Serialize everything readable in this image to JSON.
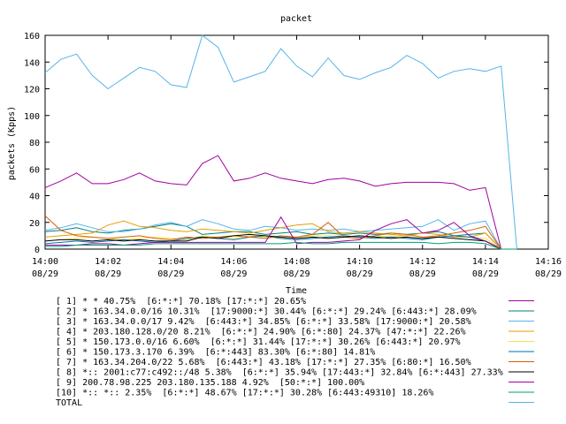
{
  "chart_data": {
    "type": "line",
    "title": "packet",
    "xlabel": "Time",
    "ylabel": "packets (Kpps)",
    "ylim": [
      0,
      160
    ],
    "xlim": [
      0,
      16
    ],
    "grid": false,
    "legend_placement": "bottom",
    "y_ticks": [
      "0",
      "20",
      "40",
      "60",
      "80",
      "100",
      "120",
      "140",
      "160"
    ],
    "x_ticks": [
      {
        "time": "14:00",
        "date": "08/29"
      },
      {
        "time": "14:02",
        "date": "08/29"
      },
      {
        "time": "14:04",
        "date": "08/29"
      },
      {
        "time": "14:06",
        "date": "08/29"
      },
      {
        "time": "14:08",
        "date": "08/29"
      },
      {
        "time": "14:10",
        "date": "08/29"
      },
      {
        "time": "14:12",
        "date": "08/29"
      },
      {
        "time": "14:14",
        "date": "08/29"
      },
      {
        "time": "14:16",
        "date": "08/29"
      }
    ],
    "x": [
      0,
      0.5,
      1,
      1.5,
      2,
      2.5,
      3,
      3.5,
      4,
      4.5,
      5,
      5.5,
      6,
      6.5,
      7,
      7.5,
      8,
      8.5,
      9,
      9.5,
      10,
      10.5,
      11,
      11.5,
      12,
      12.5,
      13,
      13.5,
      14,
      14.5,
      15
    ],
    "series": [
      {
        "name": "[ 1] * * 40.75%  [6:*:*] 70.18% [17:*:*] 20.65%",
        "color": "#a000a0",
        "values": [
          46,
          51,
          57,
          49,
          49,
          52,
          57,
          51,
          49,
          48,
          64,
          70,
          51,
          53,
          57,
          53,
          51,
          49,
          52,
          53,
          51,
          47,
          49,
          50,
          50,
          50,
          49,
          44,
          46,
          0,
          0
        ]
      },
      {
        "name": "[ 2] * 163.34.0.0/16 10.31%  [17:9000:*] 30.44% [6:*:*] 29.24% [6:443:*] 28.09%",
        "color": "#008080",
        "values": [
          13,
          14,
          16,
          13,
          12,
          14,
          15,
          17,
          19,
          17,
          11,
          12,
          13,
          13,
          11,
          12,
          13,
          11,
          12,
          11,
          12,
          11,
          12,
          11,
          12,
          13,
          10,
          11,
          12,
          0,
          0
        ]
      },
      {
        "name": "[ 3] * 163.34.0.0/17 9.42%  [6:443:*] 34.85% [6:*:*] 33.58% [17:9000:*] 20.58%",
        "color": "#56b4e9",
        "values": [
          14,
          16,
          19,
          16,
          13,
          13,
          15,
          18,
          20,
          17,
          22,
          19,
          15,
          14,
          17,
          16,
          14,
          15,
          14,
          15,
          13,
          14,
          15,
          16,
          17,
          22,
          14,
          19,
          21,
          0,
          0
        ]
      },
      {
        "name": "[ 4] * 203.180.128.0/20 8.21%  [6:*:*] 24.90% [6:*:80] 24.37% [47:*:*] 22.26%",
        "color": "#e69f00",
        "values": [
          9,
          10,
          11,
          12,
          18,
          21,
          17,
          16,
          14,
          13,
          15,
          14,
          13,
          12,
          14,
          16,
          18,
          19,
          13,
          12,
          13,
          12,
          11,
          10,
          12,
          11,
          9,
          9,
          12,
          0,
          0
        ]
      },
      {
        "name": "[ 5] * 150.173.0.0/16 6.60%  [6:*:*] 31.44% [17:*:*] 30.26% [6:443:*] 20.97%",
        "color": "#f0e442",
        "values": [
          6,
          7,
          8,
          9,
          8,
          7,
          8,
          9,
          8,
          7,
          10,
          9,
          8,
          10,
          9,
          8,
          9,
          10,
          10,
          9,
          8,
          9,
          10,
          9,
          8,
          9,
          10,
          9,
          8,
          0,
          0
        ]
      },
      {
        "name": "[ 6] * 150.173.3.170 6.39%  [6:*:443] 83.30% [6:*:80] 14.81%",
        "color": "#0072b2",
        "values": [
          4,
          5,
          6,
          5,
          6,
          7,
          6,
          5,
          6,
          8,
          9,
          8,
          7,
          9,
          10,
          8,
          7,
          8,
          9,
          10,
          9,
          8,
          9,
          8,
          7,
          9,
          10,
          9,
          6,
          0,
          0
        ]
      },
      {
        "name": "[ 7] * 163.34.204.0/22 5.68%  [6:443:*] 43.18% [17:*:*] 27.35% [6:80:*] 16.50%",
        "color": "#d55e00",
        "values": [
          25,
          14,
          10,
          9,
          8,
          9,
          10,
          8,
          7,
          9,
          8,
          9,
          10,
          9,
          8,
          10,
          9,
          11,
          20,
          9,
          8,
          10,
          12,
          11,
          9,
          10,
          12,
          14,
          17,
          0,
          0
        ]
      },
      {
        "name": "[ 8] *:: 2001:c77:c492::/48 5.38%  [6:*:*] 35.94% [17:443:*] 32.84% [6:*:443] 27.33%",
        "color": "#000000",
        "values": [
          6,
          7,
          7,
          6,
          7,
          6,
          7,
          6,
          6,
          6,
          9,
          8,
          10,
          11,
          10,
          9,
          8,
          9,
          8,
          9,
          10,
          9,
          8,
          9,
          8,
          9,
          8,
          7,
          6,
          0,
          0
        ]
      },
      {
        "name": "[ 9] 200.78.98.225 203.180.135.188 4.92%  [50:*:*] 100.00%",
        "color": "#a000a0",
        "values": [
          3,
          3,
          3,
          4,
          4,
          3,
          4,
          5,
          5,
          5,
          5,
          5,
          5,
          5,
          5,
          24,
          4,
          5,
          5,
          6,
          7,
          14,
          19,
          22,
          12,
          14,
          20,
          10,
          6,
          0,
          0
        ]
      },
      {
        "name": "[10] *:: *:: 2.35%  [6:*:*] 48.67% [17:*:*] 30.28% [6:443:49310] 18.26%",
        "color": "#009e73",
        "values": [
          2,
          2,
          3,
          3,
          3,
          3,
          3,
          4,
          4,
          4,
          4,
          4,
          4,
          4,
          4,
          4,
          5,
          4,
          4,
          5,
          5,
          5,
          5,
          5,
          5,
          4,
          5,
          5,
          4,
          0,
          0
        ]
      },
      {
        "name": "TOTAL",
        "color": "#56b4e9",
        "values": [
          132,
          142,
          146,
          130,
          120,
          128,
          136,
          133,
          123,
          121,
          160,
          151,
          125,
          129,
          133,
          150,
          137,
          129,
          143,
          130,
          127,
          132,
          136,
          145,
          139,
          128,
          133,
          135,
          133,
          137,
          0
        ]
      }
    ]
  }
}
